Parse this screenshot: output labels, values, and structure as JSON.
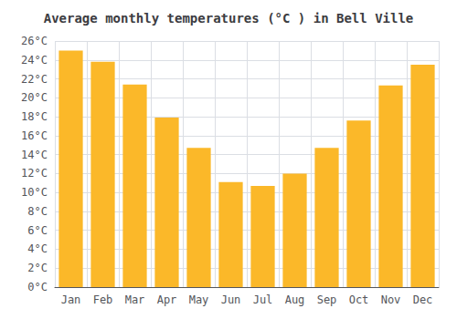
{
  "chart_data": {
    "type": "bar",
    "title": "Average monthly temperatures (°C ) in Bell Ville",
    "categories": [
      "Jan",
      "Feb",
      "Mar",
      "Apr",
      "May",
      "Jun",
      "Jul",
      "Aug",
      "Sep",
      "Oct",
      "Nov",
      "Dec"
    ],
    "values": [
      25.0,
      23.8,
      21.4,
      17.9,
      14.7,
      11.1,
      10.7,
      12.0,
      14.7,
      17.6,
      21.3,
      23.5
    ],
    "color": "#FBB829",
    "ylim": [
      0,
      26
    ],
    "yticks": [
      {
        "value": 0,
        "label": "0°C"
      },
      {
        "value": 2,
        "label": "2°C"
      },
      {
        "value": 4,
        "label": "4°C"
      },
      {
        "value": 6,
        "label": "6°C"
      },
      {
        "value": 8,
        "label": "8°C"
      },
      {
        "value": 10,
        "label": "10°C"
      },
      {
        "value": 12,
        "label": "12°C"
      },
      {
        "value": 14,
        "label": "14°C"
      },
      {
        "value": 16,
        "label": "16°C"
      },
      {
        "value": 18,
        "label": "18°C"
      },
      {
        "value": 20,
        "label": "20°C"
      },
      {
        "value": 22,
        "label": "22°C"
      },
      {
        "value": 24,
        "label": "24°C"
      },
      {
        "value": 26,
        "label": "26°C"
      }
    ],
    "grid": true
  }
}
